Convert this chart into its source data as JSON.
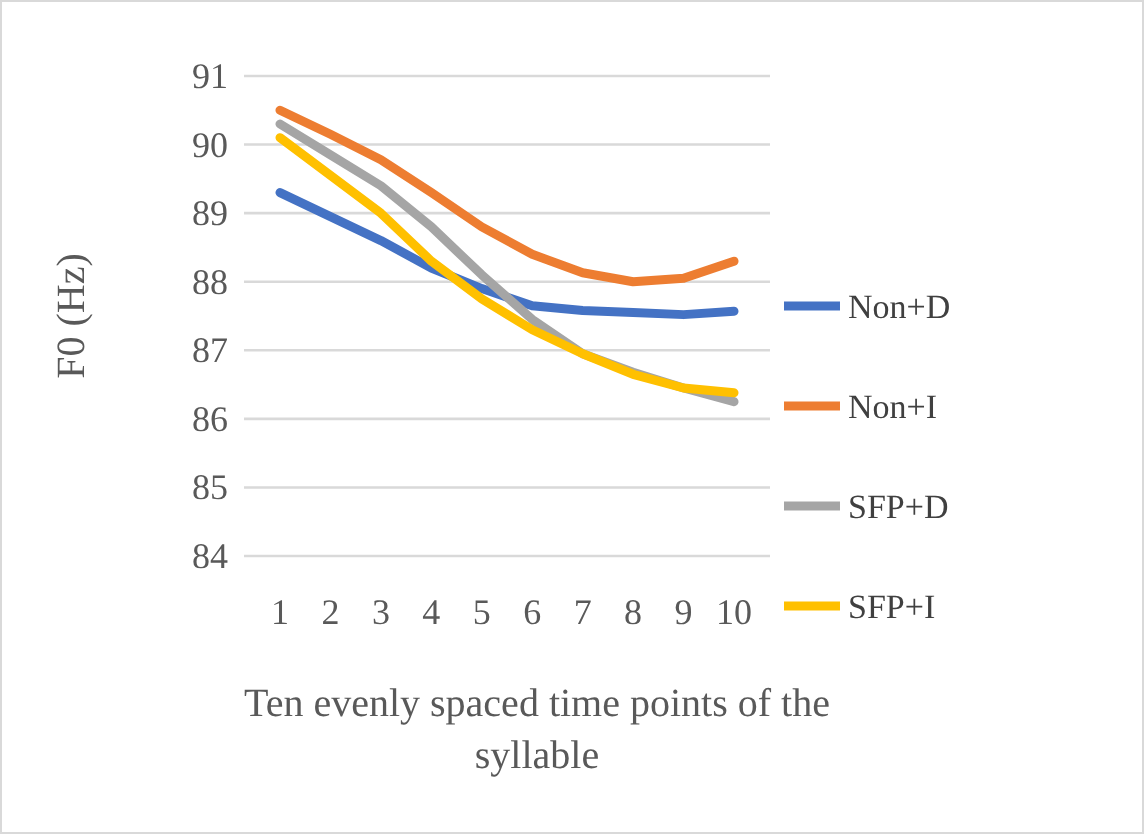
{
  "chart_data": {
    "type": "line",
    "xlabel": "Ten evenly spaced time points of the syllable",
    "ylabel": "F0 (Hz)",
    "categories": [
      "1",
      "2",
      "3",
      "4",
      "5",
      "6",
      "7",
      "8",
      "9",
      "10"
    ],
    "ylim": [
      84,
      91
    ],
    "yticks": [
      84,
      85,
      86,
      87,
      88,
      89,
      90,
      91
    ],
    "grid": "y",
    "legend": "right",
    "marker": "none",
    "line_style": "solid",
    "series": [
      {
        "name": "Non+D",
        "color": "#4472c4",
        "values": [
          89.3,
          88.95,
          88.6,
          88.2,
          87.9,
          87.65,
          87.58,
          87.55,
          87.52,
          87.57
        ]
      },
      {
        "name": "Non+I",
        "color": "#ed7d31",
        "values": [
          90.5,
          90.15,
          89.78,
          89.3,
          88.8,
          88.4,
          88.13,
          88.0,
          88.05,
          88.3
        ]
      },
      {
        "name": "SFP+D",
        "color": "#a5a5a5",
        "values": [
          90.3,
          89.85,
          89.4,
          88.8,
          88.1,
          87.45,
          86.95,
          86.68,
          86.45,
          86.25
        ]
      },
      {
        "name": "SFP+I",
        "color": "#ffc000",
        "values": [
          90.1,
          89.55,
          89.0,
          88.3,
          87.75,
          87.3,
          86.95,
          86.65,
          86.45,
          86.38
        ]
      }
    ]
  }
}
